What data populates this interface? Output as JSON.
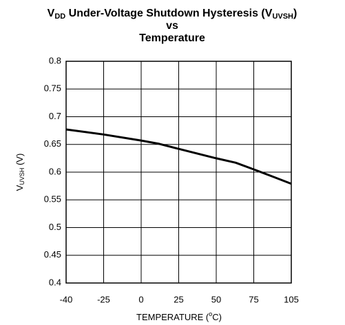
{
  "chart_data": {
    "type": "line",
    "title": [
      "V",
      "DD",
      " Under-Voltage Shutdown Hysteresis (V",
      "UVSH",
      ")",
      "vs",
      "Temperature"
    ],
    "y_label": [
      "V",
      "UVSH",
      " (V)"
    ],
    "x_label": [
      "TEMPERATURE (",
      "o",
      "C)"
    ],
    "x": [
      -40,
      -25,
      0,
      12,
      25,
      50,
      63,
      75,
      90,
      105
    ],
    "series": [
      {
        "color": "#000000",
        "values": [
          0.677,
          0.668,
          0.657,
          0.651,
          0.642,
          0.625,
          0.617,
          0.605,
          0.592,
          0.579
        ]
      }
    ],
    "xlim": [
      -40,
      105
    ],
    "xticks": [
      -40,
      -25,
      0,
      25,
      50,
      75,
      105
    ],
    "ylim": [
      0.4,
      0.8
    ],
    "yticks": [
      0.4,
      0.45,
      0.5,
      0.55,
      0.6,
      0.65,
      0.7,
      0.75,
      0.8
    ],
    "grid": true
  }
}
